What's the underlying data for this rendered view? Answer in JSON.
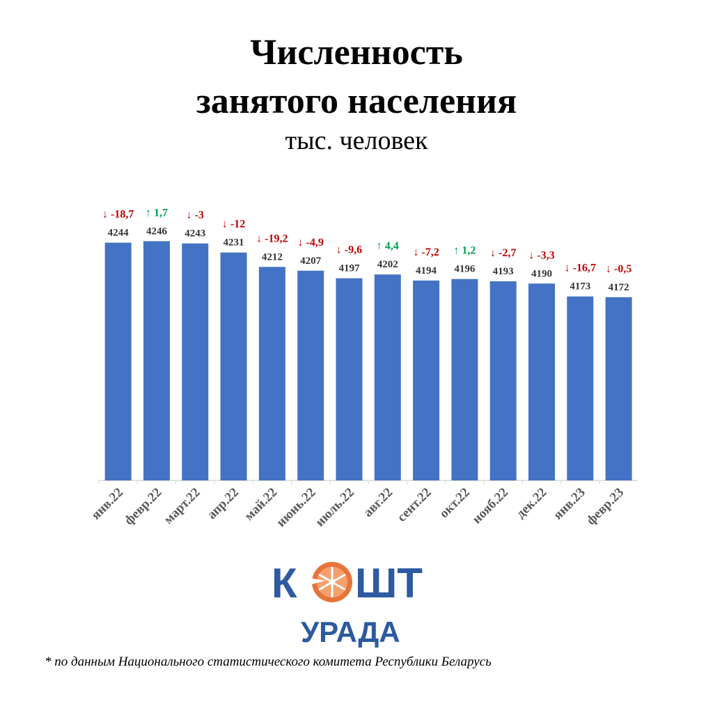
{
  "chart_data": {
    "type": "bar",
    "title": "Численность занятого населения",
    "title_lines": [
      "Численность",
      "занятого населения"
    ],
    "subtitle": "тыс. человек",
    "categories": [
      "янв.22",
      "февр.22",
      "март.22",
      "апр.22",
      "май.22",
      "июнь.22",
      "июль.22",
      "авг.22",
      "сент.22",
      "окт.22",
      "нояб.22",
      "дек.22",
      "янв.23",
      "февр.23"
    ],
    "values": [
      4244,
      4246,
      4243,
      4231,
      4212,
      4207,
      4197,
      4202,
      4194,
      4196,
      4193,
      4190,
      4173,
      4172
    ],
    "changes": [
      "↓ -18,7",
      "↑ 1,7",
      "↓ -3",
      "↓ -12",
      "↓ -19,2",
      "↓ -4,9",
      "↓ -9,6",
      "↑ 4,4",
      "↓ -7,2",
      "↑ 1,2",
      "↓ -2,7",
      "↓ -3,3",
      "↓ -16,7",
      "↓ -0,5"
    ],
    "change_direction": [
      "down",
      "up",
      "down",
      "down",
      "down",
      "down",
      "down",
      "up",
      "down",
      "up",
      "down",
      "down",
      "down",
      "down"
    ],
    "ylim": [
      3930,
      4250
    ],
    "grid": false,
    "legend": "none",
    "colors": {
      "bar": "#4472C4",
      "down": "#C00000",
      "up": "#00A050",
      "axis": "#D9D9D9"
    }
  },
  "logo": {
    "word1_left": "К",
    "word1_right": "ШТ",
    "word2": "УРАДА",
    "colors": {
      "blue": "#2D5AA0",
      "orange": "#E8743B"
    }
  },
  "footnote": "* по данным Национального статистического комитета Республики Беларусь"
}
